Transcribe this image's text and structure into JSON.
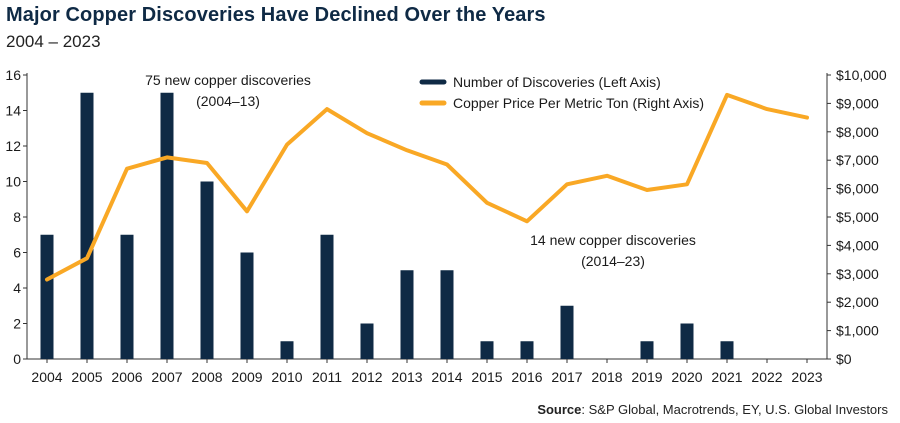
{
  "chart_data": {
    "type": "bar+line",
    "title": "Major Copper Discoveries Have Declined Over the Years",
    "subtitle": "2004 – 2023",
    "categories": [
      "2004",
      "2005",
      "2006",
      "2007",
      "2008",
      "2009",
      "2010",
      "2011",
      "2012",
      "2013",
      "2014",
      "2015",
      "2016",
      "2017",
      "2018",
      "2019",
      "2020",
      "2021",
      "2022",
      "2023"
    ],
    "series": [
      {
        "name": "Number of Discoveries (Left Axis)",
        "type": "bar",
        "axis": "left",
        "color": "#0f2a45",
        "values": [
          7,
          15,
          7,
          15,
          10,
          6,
          1,
          7,
          2,
          5,
          5,
          1,
          1,
          3,
          0,
          1,
          2,
          1,
          0,
          0
        ]
      },
      {
        "name": "Copper Price Per Metric Ton (Right Axis)",
        "type": "line",
        "axis": "right",
        "color": "#f9a825",
        "values": [
          2800,
          3550,
          6700,
          7100,
          6900,
          5200,
          7550,
          8800,
          7950,
          7350,
          6850,
          5500,
          4850,
          6150,
          6450,
          5950,
          6150,
          9300,
          8800,
          8500
        ]
      }
    ],
    "left_axis": {
      "min": 0,
      "max": 16,
      "ticks": [
        "0",
        "2",
        "4",
        "6",
        "8",
        "10",
        "12",
        "14",
        "16"
      ]
    },
    "right_axis": {
      "min": 0,
      "max": 10000,
      "ticks": [
        "$0",
        "$1,000",
        "$2,000",
        "$3,000",
        "$4,000",
        "$5,000",
        "$6,000",
        "$7,000",
        "$8,000",
        "$9,000",
        "$10,000"
      ]
    },
    "legend": [
      {
        "label": "Number of Discoveries (Left Axis)",
        "color": "#0f2a45"
      },
      {
        "label": "Copper Price Per Metric Ton (Right Axis)",
        "color": "#f9a825"
      }
    ],
    "annotations": [
      {
        "line1": "75 new copper discoveries",
        "line2": "(2004–13)"
      },
      {
        "line1": "14 new copper discoveries",
        "line2": "(2014–23)"
      }
    ],
    "source_label": "Source",
    "source_text": ": S&P Global, Macrotrends, EY, U.S. Global Investors"
  }
}
